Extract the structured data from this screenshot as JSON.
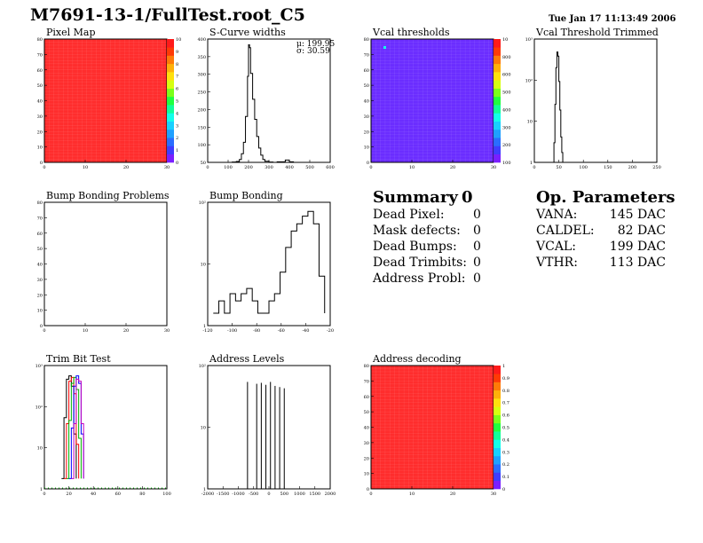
{
  "header": {
    "title": "M7691-13-1/FullTest.root_C5",
    "date": "Tue Jan 17 11:13:49 2006"
  },
  "colors": {
    "map_red": "#ff2d2d",
    "map_blue": "#6b2dff",
    "axis": "#000000"
  },
  "palette": [
    "#7a1fff",
    "#3f3dff",
    "#2a6dff",
    "#1fa0ff",
    "#18d0ff",
    "#13ffea",
    "#11ff9a",
    "#20ff40",
    "#7bff1a",
    "#d6ff10",
    "#ffe00e",
    "#ffb00a",
    "#ff7a08",
    "#ff3a05",
    "#ff1a1a"
  ],
  "panels": {
    "pixel_map": {
      "title": "Pixel Map",
      "yticks": [
        "80",
        "70",
        "60",
        "50",
        "40",
        "30",
        "20",
        "10",
        "0"
      ],
      "xticks": [
        "0",
        "10",
        "20",
        "30"
      ],
      "zticks": [
        "10",
        "9",
        "8",
        "7",
        "6",
        "5",
        "4",
        "3",
        "2",
        "1",
        "0"
      ]
    },
    "scurve": {
      "title": "S-Curve widths",
      "stats": [
        "μ: 199.95",
        "σ: 30.59"
      ],
      "yticks": [
        "400",
        "350",
        "300",
        "250",
        "200",
        "150",
        "100",
        "50"
      ],
      "xticks": [
        "0",
        "100",
        "200",
        "300",
        "400",
        "500",
        "600"
      ]
    },
    "vcal_thr": {
      "title": "Vcal thresholds",
      "yticks": [
        "80",
        "70",
        "60",
        "50",
        "40",
        "30",
        "20",
        "10",
        "0"
      ],
      "xticks": [
        "0",
        "10",
        "20",
        "30"
      ],
      "zticks": [
        "10",
        "800",
        "600",
        "500",
        "400",
        "300",
        "200",
        "100"
      ]
    },
    "vcal_trim": {
      "title": "Vcal Threshold Trimmed",
      "yticks": [
        "10³",
        "10²",
        "10",
        "1"
      ],
      "xticks": [
        "0",
        "50",
        "100",
        "150",
        "200",
        "250"
      ]
    },
    "bump_problems": {
      "title": "Bump Bonding Problems",
      "yticks": [
        "80",
        "70",
        "60",
        "50",
        "40",
        "30",
        "20",
        "10",
        "0"
      ],
      "xticks": [
        "0",
        "10",
        "20",
        "30"
      ]
    },
    "bump_bonding": {
      "title": "Bump Bonding",
      "yticks": [
        "10²",
        "10",
        "1"
      ],
      "xticks": [
        "-120",
        "-100",
        "-80",
        "-60",
        "-40",
        "-20"
      ]
    },
    "trim_bit": {
      "title": "Trim Bit Test",
      "yticks": [
        "10³",
        "10²",
        "10",
        "1"
      ],
      "xticks": [
        "0",
        "20",
        "40",
        "60",
        "80",
        "100"
      ]
    },
    "addr_levels": {
      "title": "Address Levels",
      "yticks": [
        "10²",
        "10",
        "1"
      ],
      "xticks": [
        "-2000",
        "-1500",
        "-1000",
        "-500",
        "0",
        "500",
        "1000",
        "1500",
        "2000"
      ]
    },
    "addr_decoding": {
      "title": "Address decoding",
      "yticks": [
        "80",
        "70",
        "60",
        "50",
        "40",
        "30",
        "20",
        "10",
        "0"
      ],
      "xticks": [
        "0",
        "10",
        "20",
        "30"
      ],
      "zticks": [
        "1",
        "0.9",
        "0.8",
        "0.7",
        "0.6",
        "0.5",
        "0.4",
        "0.3",
        "0.2",
        "0.1",
        "0"
      ]
    }
  },
  "summary": {
    "title": "Summary",
    "count": "0",
    "rows": [
      {
        "label": "Dead Pixel:",
        "value": "0"
      },
      {
        "label": "Mask defects:",
        "value": "0"
      },
      {
        "label": "Dead Bumps:",
        "value": "0"
      },
      {
        "label": "Dead Trimbits:",
        "value": "0"
      },
      {
        "label": "Address Probl:",
        "value": "0"
      }
    ]
  },
  "op_params": {
    "title": "Op. Parameters",
    "rows": [
      {
        "label": "VANA:",
        "value": "145 DAC"
      },
      {
        "label": "CALDEL:",
        "value": "82 DAC"
      },
      {
        "label": "VCAL:",
        "value": "199 DAC"
      },
      {
        "label": "VTHR:",
        "value": "113 DAC"
      }
    ]
  },
  "chart_data": [
    {
      "type": "heatmap",
      "title": "Pixel Map",
      "xlim": [
        0,
        52
      ],
      "ylim": [
        0,
        80
      ],
      "zlim": [
        0,
        10
      ],
      "fill": "uniform",
      "value": 10
    },
    {
      "type": "line",
      "title": "S-Curve widths",
      "xlim": [
        0,
        600
      ],
      "ylim": [
        0,
        430
      ],
      "x": [
        100,
        120,
        140,
        155,
        165,
        175,
        185,
        195,
        200,
        205,
        210,
        220,
        230,
        240,
        250,
        260,
        270,
        280,
        300,
        320,
        340,
        380,
        400,
        420,
        500
      ],
      "y": [
        0,
        1,
        3,
        10,
        30,
        70,
        160,
        300,
        410,
        400,
        310,
        220,
        150,
        90,
        50,
        25,
        10,
        4,
        1,
        0,
        2,
        8,
        2,
        0,
        0
      ]
    },
    {
      "type": "heatmap",
      "title": "Vcal thresholds",
      "xlim": [
        0,
        52
      ],
      "ylim": [
        0,
        80
      ],
      "fill": "uniform",
      "value": 200
    },
    {
      "type": "line",
      "title": "Vcal Threshold Trimmed",
      "xlim": [
        0,
        250
      ],
      "ylog": true,
      "ylim": [
        0.5,
        3000
      ],
      "x": [
        38,
        40,
        42,
        44,
        46,
        48,
        50,
        52,
        54,
        56,
        58,
        60
      ],
      "y": [
        0.5,
        2,
        30,
        400,
        1200,
        900,
        150,
        20,
        3,
        1,
        0.5,
        0.5
      ]
    },
    {
      "type": "heatmap",
      "title": "Bump Bonding Problems",
      "xlim": [
        0,
        52
      ],
      "ylim": [
        0,
        80
      ],
      "fill": "empty"
    },
    {
      "type": "line",
      "title": "Bump Bonding",
      "xlim": [
        -130,
        -20
      ],
      "ylog": true,
      "ylim": [
        0.5,
        500
      ],
      "x": [
        -125,
        -120,
        -115,
        -110,
        -105,
        -100,
        -95,
        -90,
        -85,
        -80,
        -75,
        -70,
        -65,
        -60,
        -55,
        -50,
        -45,
        -40,
        -35,
        -30,
        -25
      ],
      "y": [
        1,
        2,
        1,
        3,
        2,
        3,
        4,
        2,
        1,
        1,
        2,
        3,
        10,
        40,
        100,
        150,
        230,
        300,
        150,
        8,
        1
      ]
    },
    {
      "type": "line",
      "title": "Trim Bit Test",
      "xlim": [
        0,
        100
      ],
      "ylog": true,
      "ylim": [
        0.5,
        2000
      ],
      "series": [
        {
          "color": "#000000",
          "x": [
            14,
            16,
            18,
            20,
            22,
            24,
            26
          ],
          "y": [
            1,
            60,
            800,
            1000,
            500,
            20,
            1
          ]
        },
        {
          "color": "#ff0000",
          "x": [
            16,
            18,
            20,
            22,
            24,
            26,
            28
          ],
          "y": [
            1,
            40,
            700,
            900,
            300,
            10,
            1
          ]
        },
        {
          "color": "#00b000",
          "x": [
            18,
            20,
            22,
            24,
            26,
            28,
            30
          ],
          "y": [
            1,
            50,
            600,
            900,
            400,
            15,
            1
          ]
        },
        {
          "color": "#0000ff",
          "x": [
            20,
            22,
            24,
            26,
            28,
            30,
            32
          ],
          "y": [
            1,
            30,
            500,
            1000,
            600,
            20,
            1
          ]
        },
        {
          "color": "#c000c0",
          "x": [
            22,
            24,
            26,
            28,
            30,
            32
          ],
          "y": [
            1,
            40,
            800,
            700,
            40,
            1
          ]
        }
      ]
    },
    {
      "type": "bar",
      "title": "Address Levels",
      "xlim": [
        -2000,
        2000
      ],
      "ylog": true,
      "ylim": [
        0.5,
        500
      ],
      "x": [
        -700,
        -400,
        -250,
        -100,
        50,
        200,
        350,
        500
      ],
      "values": [
        200,
        180,
        190,
        170,
        200,
        160,
        150,
        140
      ]
    },
    {
      "type": "heatmap",
      "title": "Address decoding",
      "xlim": [
        0,
        52
      ],
      "ylim": [
        0,
        80
      ],
      "zlim": [
        0,
        1
      ],
      "fill": "uniform",
      "value": 1
    }
  ]
}
